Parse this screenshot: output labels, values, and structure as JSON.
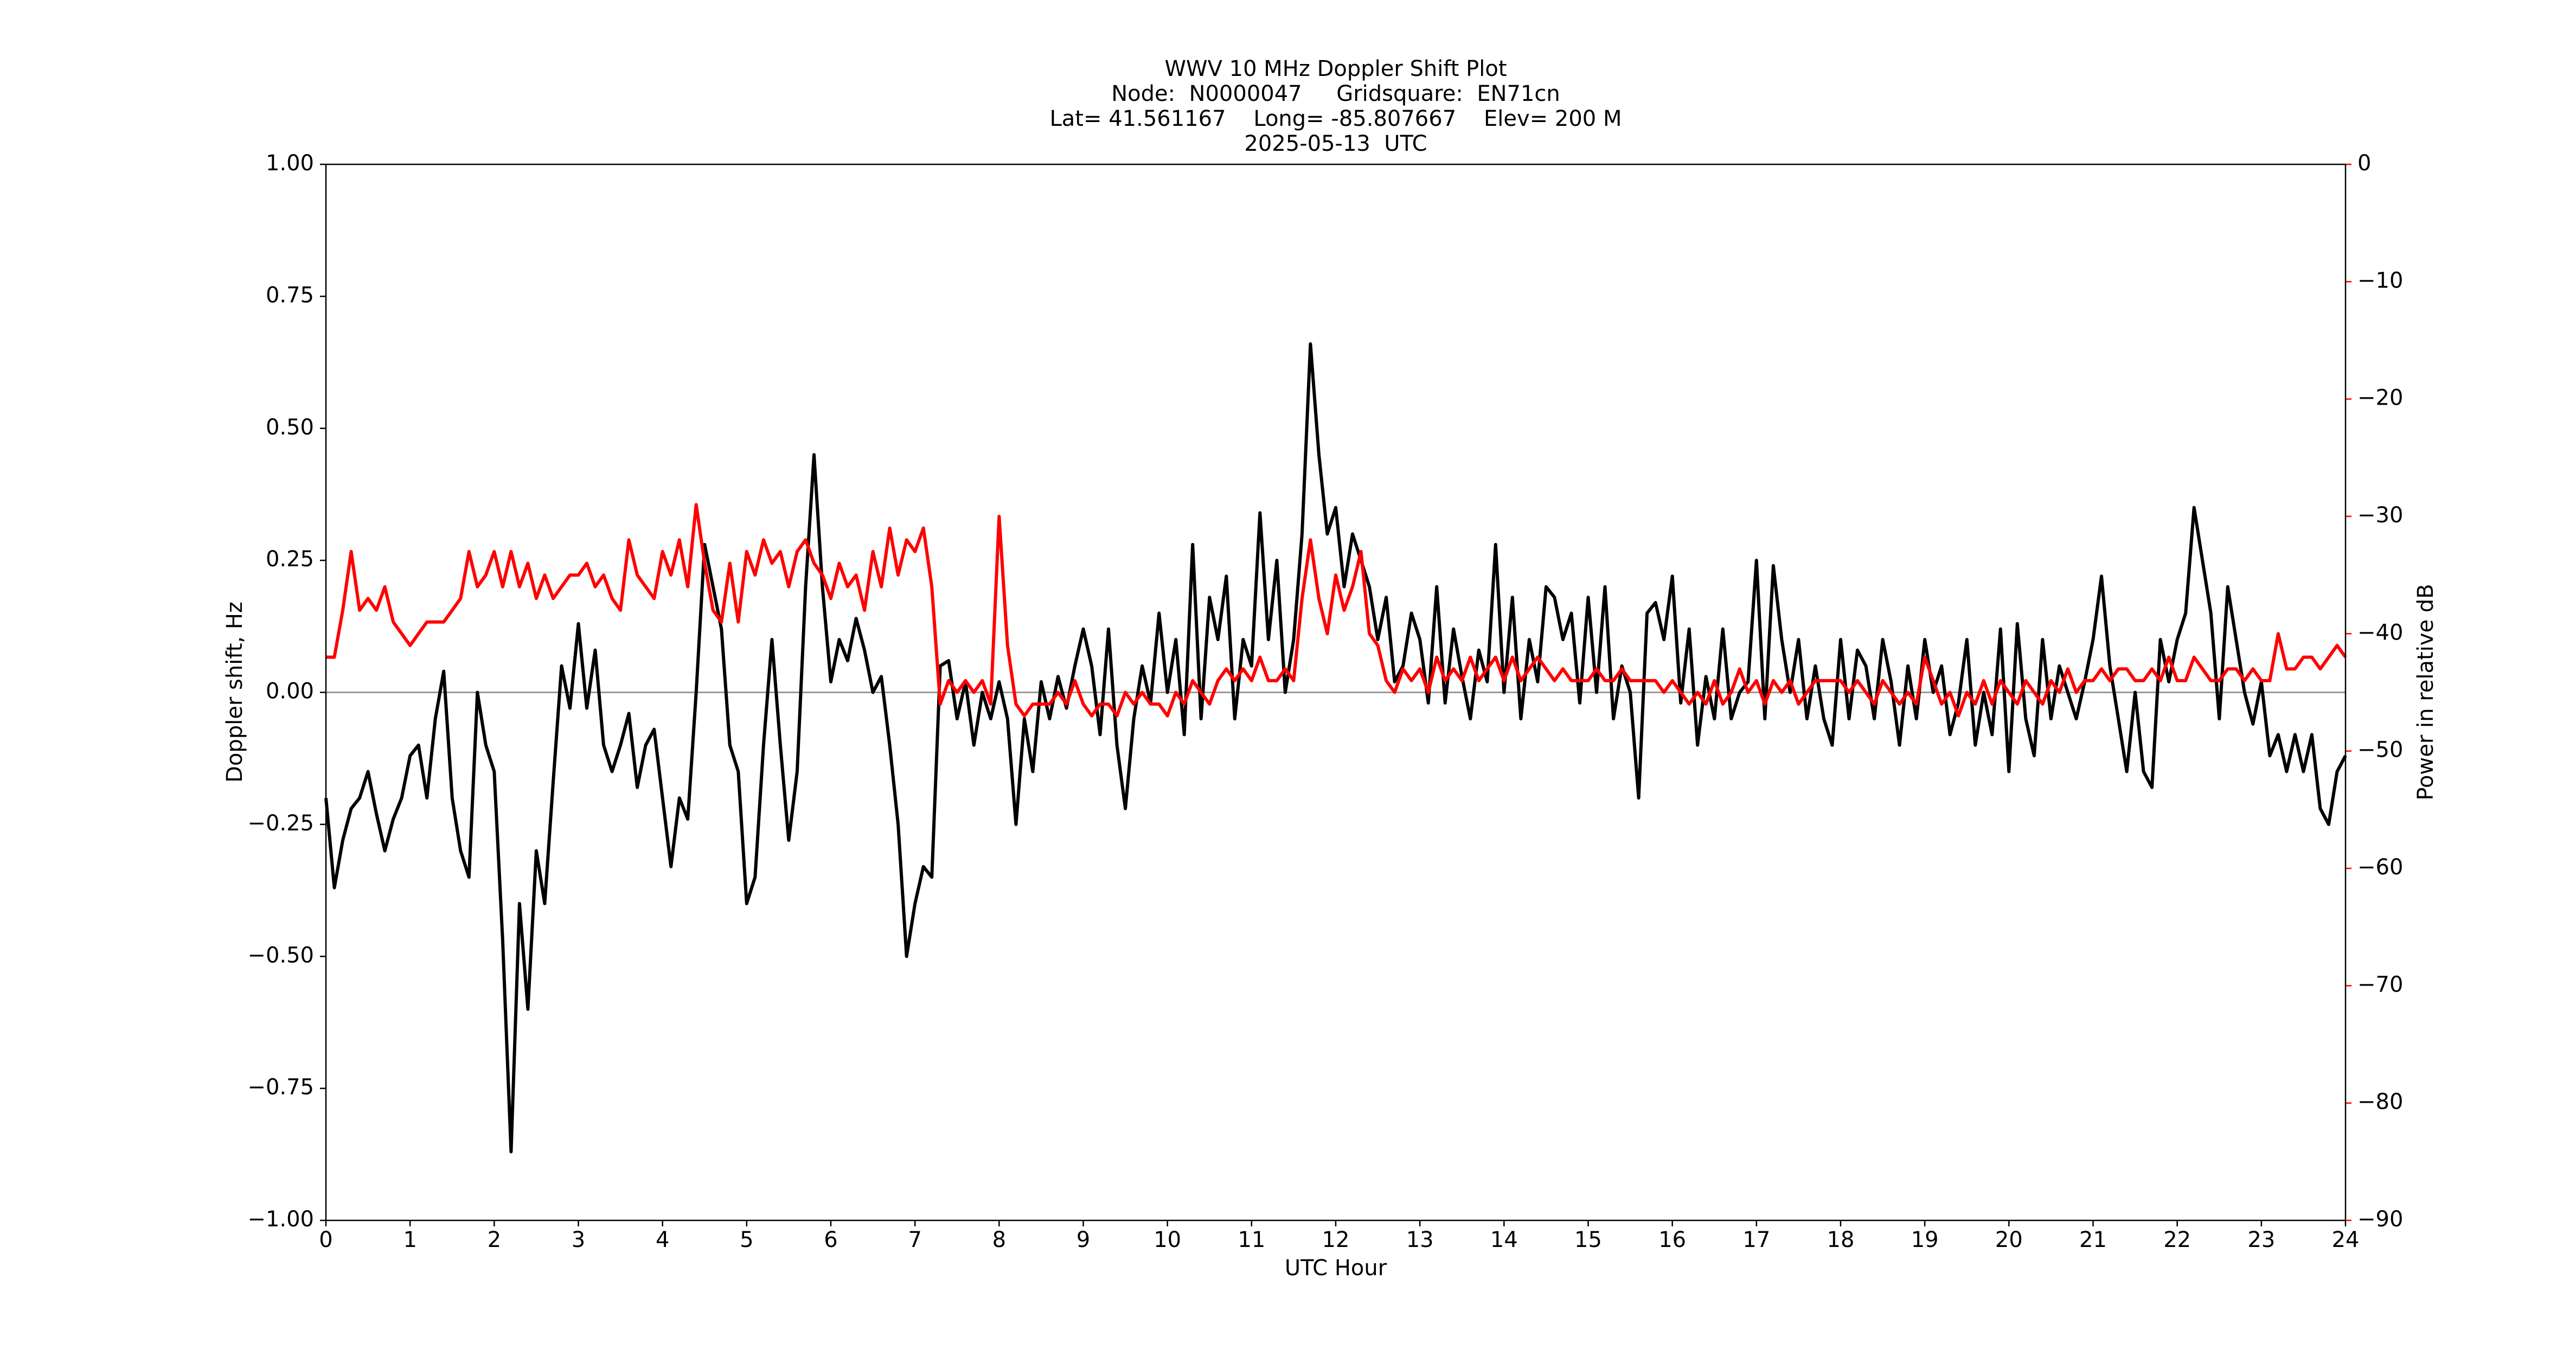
{
  "chart_data": {
    "type": "line",
    "title": [
      "WWV 10 MHz Doppler Shift Plot",
      "Node:  N0000047     Gridsquare:  EN71cn",
      "Lat= 41.561167    Long= -85.807667    Elev= 200 M",
      "2025-05-13  UTC"
    ],
    "xlabel": "UTC Hour",
    "ylabel": "Doppler shift, Hz",
    "y2label": "Power in relative dB",
    "xlim": [
      0,
      24
    ],
    "xticks": [
      0,
      1,
      2,
      3,
      4,
      5,
      6,
      7,
      8,
      9,
      10,
      11,
      12,
      13,
      14,
      15,
      16,
      17,
      18,
      19,
      20,
      21,
      22,
      23,
      24
    ],
    "ylim": [
      -1,
      1
    ],
    "yticks": [
      {
        "value": -1,
        "label": "−1.00"
      },
      {
        "value": -0.75,
        "label": "−0.75"
      },
      {
        "value": -0.5,
        "label": "−0.50"
      },
      {
        "value": -0.25,
        "label": "−0.25"
      },
      {
        "value": 0,
        "label": "0.00"
      },
      {
        "value": 0.25,
        "label": "0.25"
      },
      {
        "value": 0.5,
        "label": "0.50"
      },
      {
        "value": 0.75,
        "label": "0.75"
      },
      {
        "value": 1,
        "label": "1.00"
      }
    ],
    "y2lim": [
      -90,
      0
    ],
    "y2ticks": [
      {
        "value": -90,
        "label": "−90"
      },
      {
        "value": -80,
        "label": "−80"
      },
      {
        "value": -70,
        "label": "−70"
      },
      {
        "value": -60,
        "label": "−60"
      },
      {
        "value": -50,
        "label": "−50"
      },
      {
        "value": -40,
        "label": "−40"
      },
      {
        "value": -30,
        "label": "−30"
      },
      {
        "value": -20,
        "label": "−20"
      },
      {
        "value": -10,
        "label": "−10"
      },
      0
    ],
    "y2color": "#ff0000",
    "hline": 0,
    "hline_color": "#999999",
    "x": [
      0,
      0.1,
      0.2,
      0.3,
      0.4,
      0.5,
      0.6,
      0.7,
      0.8,
      0.9,
      1,
      1.1,
      1.2,
      1.3,
      1.4,
      1.5,
      1.6,
      1.7,
      1.8,
      1.9,
      2,
      2.1,
      2.2,
      2.3,
      2.4,
      2.5,
      2.6,
      2.7,
      2.8,
      2.9,
      3,
      3.1,
      3.2,
      3.3,
      3.4,
      3.5,
      3.6,
      3.7,
      3.8,
      3.9,
      4,
      4.1,
      4.2,
      4.3,
      4.4,
      4.5,
      4.6,
      4.7,
      4.8,
      4.9,
      5,
      5.1,
      5.2,
      5.3,
      5.4,
      5.5,
      5.6,
      5.7,
      5.8,
      5.9,
      6,
      6.1,
      6.2,
      6.3,
      6.4,
      6.5,
      6.6,
      6.7,
      6.8,
      6.9,
      7,
      7.1,
      7.2,
      7.3,
      7.4,
      7.5,
      7.6,
      7.7,
      7.8,
      7.9,
      8,
      8.1,
      8.2,
      8.3,
      8.4,
      8.5,
      8.6,
      8.7,
      8.8,
      8.9,
      9,
      9.1,
      9.2,
      9.3,
      9.4,
      9.5,
      9.6,
      9.7,
      9.8,
      9.9,
      10,
      10.1,
      10.2,
      10.3,
      10.4,
      10.5,
      10.6,
      10.7,
      10.8,
      10.9,
      11,
      11.1,
      11.2,
      11.3,
      11.4,
      11.5,
      11.6,
      11.7,
      11.8,
      11.9,
      12,
      12.1,
      12.2,
      12.3,
      12.4,
      12.5,
      12.6,
      12.7,
      12.8,
      12.9,
      13,
      13.1,
      13.2,
      13.3,
      13.4,
      13.5,
      13.6,
      13.7,
      13.8,
      13.9,
      14,
      14.1,
      14.2,
      14.3,
      14.4,
      14.5,
      14.6,
      14.7,
      14.8,
      14.9,
      15,
      15.1,
      15.2,
      15.3,
      15.4,
      15.5,
      15.6,
      15.7,
      15.8,
      15.9,
      16,
      16.1,
      16.2,
      16.3,
      16.4,
      16.5,
      16.6,
      16.7,
      16.8,
      16.9,
      17,
      17.1,
      17.2,
      17.3,
      17.4,
      17.5,
      17.6,
      17.7,
      17.8,
      17.9,
      18,
      18.1,
      18.2,
      18.3,
      18.4,
      18.5,
      18.6,
      18.7,
      18.8,
      18.9,
      19,
      19.1,
      19.2,
      19.3,
      19.4,
      19.5,
      19.6,
      19.7,
      19.8,
      19.9,
      20,
      20.1,
      20.2,
      20.3,
      20.4,
      20.5,
      20.6,
      20.7,
      20.8,
      20.9,
      21,
      21.1,
      21.2,
      21.3,
      21.4,
      21.5,
      21.6,
      21.7,
      21.8,
      21.9,
      22,
      22.1,
      22.2,
      22.3,
      22.4,
      22.5,
      22.6,
      22.7,
      22.8,
      22.9,
      23,
      23.1,
      23.2,
      23.3,
      23.4,
      23.5,
      23.6,
      23.7,
      23.8,
      23.9,
      24
    ],
    "series": [
      {
        "color": "#000000",
        "values": [
          -0.2,
          -0.37,
          -0.28,
          -0.22,
          -0.2,
          -0.15,
          -0.23,
          -0.3,
          -0.24,
          -0.2,
          -0.12,
          -0.1,
          -0.2,
          -0.05,
          0.04,
          -0.2,
          -0.3,
          -0.35,
          0,
          -0.1,
          -0.15,
          -0.47,
          -0.87,
          -0.4,
          -0.6,
          -0.3,
          -0.4,
          -0.17,
          0.05,
          -0.03,
          0.13,
          -0.03,
          0.08,
          -0.1,
          -0.15,
          -0.1,
          -0.04,
          -0.18,
          -0.1,
          -0.07,
          -0.2,
          -0.33,
          -0.2,
          -0.24,
          0,
          0.28,
          0.2,
          0.12,
          -0.1,
          -0.15,
          -0.4,
          -0.35,
          -0.1,
          0.1,
          -0.1,
          -0.28,
          -0.15,
          0.2,
          0.45,
          0.2,
          0.02,
          0.1,
          0.06,
          0.14,
          0.08,
          0,
          0.03,
          -0.1,
          -0.25,
          -0.5,
          -0.4,
          -0.33,
          -0.35,
          0.05,
          0.06,
          -0.05,
          0.02,
          -0.1,
          0,
          -0.05,
          0.02,
          -0.05,
          -0.25,
          -0.05,
          -0.15,
          0.02,
          -0.05,
          0.03,
          -0.03,
          0.05,
          0.12,
          0.05,
          -0.08,
          0.12,
          -0.1,
          -0.22,
          -0.05,
          0.05,
          -0.02,
          0.15,
          0,
          0.1,
          -0.08,
          0.28,
          -0.05,
          0.18,
          0.1,
          0.22,
          -0.05,
          0.1,
          0.05,
          0.34,
          0.1,
          0.25,
          0,
          0.1,
          0.3,
          0.66,
          0.45,
          0.3,
          0.35,
          0.2,
          0.3,
          0.25,
          0.2,
          0.1,
          0.18,
          0.02,
          0.05,
          0.15,
          0.1,
          -0.02,
          0.2,
          -0.02,
          0.12,
          0.03,
          -0.05,
          0.08,
          0.02,
          0.28,
          0,
          0.18,
          -0.05,
          0.1,
          0.02,
          0.2,
          0.18,
          0.1,
          0.15,
          -0.02,
          0.18,
          0,
          0.2,
          -0.05,
          0.05,
          0,
          -0.2,
          0.15,
          0.17,
          0.1,
          0.22,
          -0.02,
          0.12,
          -0.1,
          0.03,
          -0.05,
          0.12,
          -0.05,
          0,
          0.02,
          0.25,
          -0.05,
          0.24,
          0.1,
          0,
          0.1,
          -0.05,
          0.05,
          -0.05,
          -0.1,
          0.1,
          -0.05,
          0.08,
          0.05,
          -0.05,
          0.1,
          0.02,
          -0.1,
          0.05,
          -0.05,
          0.1,
          0,
          0.05,
          -0.08,
          -0.02,
          0.1,
          -0.1,
          0,
          -0.08,
          0.12,
          -0.15,
          0.13,
          -0.05,
          -0.12,
          0.1,
          -0.05,
          0.05,
          0,
          -0.05,
          0.02,
          0.1,
          0.22,
          0.05,
          -0.05,
          -0.15,
          0,
          -0.15,
          -0.18,
          0.1,
          0.02,
          0.1,
          0.15,
          0.35,
          0.25,
          0.15,
          -0.05,
          0.2,
          0.1,
          0,
          -0.06,
          0.02,
          -0.12,
          -0.08,
          -0.15,
          -0.08,
          -0.15,
          -0.08,
          -0.22,
          -0.25,
          -0.15,
          -0.12
        ]
      },
      {
        "color": "#ff0000",
        "axis": "y2",
        "values": [
          -42,
          -42,
          -38,
          -33,
          -38,
          -37,
          -38,
          -36,
          -39,
          -40,
          -41,
          -40,
          -39,
          -39,
          -39,
          -38,
          -37,
          -33,
          -36,
          -35,
          -33,
          -36,
          -33,
          -36,
          -34,
          -37,
          -35,
          -37,
          -36,
          -35,
          -35,
          -34,
          -36,
          -35,
          -37,
          -38,
          -32,
          -35,
          -36,
          -37,
          -33,
          -35,
          -32,
          -36,
          -29,
          -34,
          -38,
          -39,
          -34,
          -39,
          -33,
          -35,
          -32,
          -34,
          -33,
          -36,
          -33,
          -32,
          -34,
          -35,
          -37,
          -34,
          -36,
          -35,
          -38,
          -33,
          -36,
          -31,
          -35,
          -32,
          -33,
          -31,
          -36,
          -46,
          -44,
          -45,
          -44,
          -45,
          -44,
          -46,
          -30,
          -41,
          -46,
          -47,
          -46,
          -46,
          -46,
          -45,
          -46,
          -44,
          -46,
          -47,
          -46,
          -46,
          -47,
          -45,
          -46,
          -45,
          -46,
          -46,
          -47,
          -45,
          -46,
          -44,
          -45,
          -46,
          -44,
          -43,
          -44,
          -43,
          -44,
          -42,
          -44,
          -44,
          -43,
          -44,
          -37,
          -32,
          -37,
          -40,
          -35,
          -38,
          -36,
          -33,
          -40,
          -41,
          -44,
          -45,
          -43,
          -44,
          -43,
          -45,
          -42,
          -44,
          -43,
          -44,
          -42,
          -44,
          -43,
          -42,
          -44,
          -42,
          -44,
          -43,
          -42,
          -43,
          -44,
          -43,
          -44,
          -44,
          -44,
          -43,
          -44,
          -44,
          -43,
          -44,
          -44,
          -44,
          -44,
          -45,
          -44,
          -45,
          -46,
          -45,
          -46,
          -44,
          -46,
          -45,
          -43,
          -45,
          -44,
          -46,
          -44,
          -45,
          -44,
          -46,
          -45,
          -44,
          -44,
          -44,
          -44,
          -45,
          -44,
          -45,
          -46,
          -44,
          -45,
          -46,
          -45,
          -46,
          -42,
          -44,
          -46,
          -45,
          -47,
          -45,
          -46,
          -44,
          -46,
          -44,
          -45,
          -46,
          -44,
          -45,
          -46,
          -44,
          -45,
          -43,
          -45,
          -44,
          -44,
          -43,
          -44,
          -43,
          -43,
          -44,
          -44,
          -43,
          -44,
          -42,
          -44,
          -44,
          -42,
          -43,
          -44,
          -44,
          -43,
          -43,
          -44,
          -43,
          -44,
          -44,
          -40,
          -43,
          -43,
          -42,
          -42,
          -43,
          -42,
          -41,
          -42
        ]
      }
    ]
  }
}
